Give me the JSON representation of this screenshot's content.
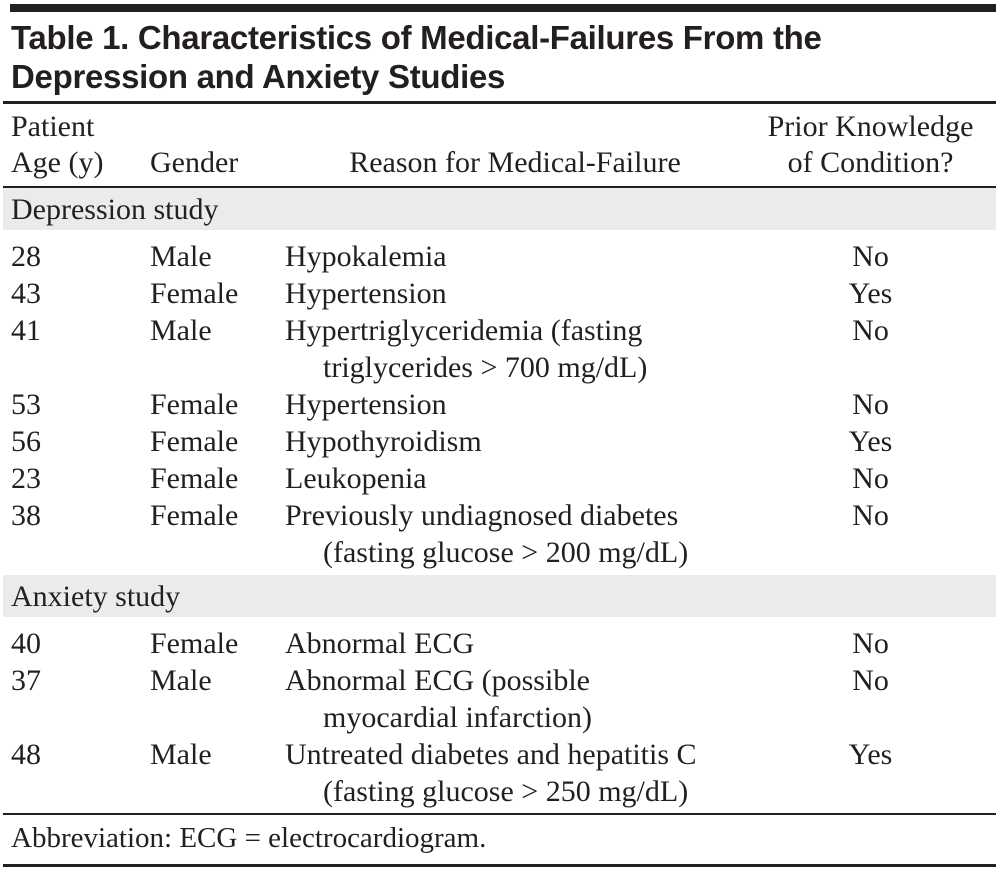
{
  "figure": {
    "title": "Table 1. Characteristics of Medical-Failures From the\nDepression and Anxiety Studies",
    "columns": [
      {
        "label": "Patient\nAge (y)"
      },
      {
        "label": "Gender"
      },
      {
        "label": "Reason for Medical-Failure"
      },
      {
        "label": "Prior Knowledge\nof Condition?"
      }
    ],
    "sections": [
      {
        "label": "Depression study",
        "rows": [
          {
            "age": "28",
            "gender": "Male",
            "reason": "Hypokalemia",
            "prior_knowledge": "No"
          },
          {
            "age": "43",
            "gender": "Female",
            "reason": "Hypertension",
            "prior_knowledge": "Yes"
          },
          {
            "age": "41",
            "gender": "Male",
            "reason": "Hypertriglyceridemia (fasting\ntriglycerides > 700 mg/dL)",
            "prior_knowledge": "No"
          },
          {
            "age": "53",
            "gender": "Female",
            "reason": "Hypertension",
            "prior_knowledge": "No"
          },
          {
            "age": "56",
            "gender": "Female",
            "reason": "Hypothyroidism",
            "prior_knowledge": "Yes"
          },
          {
            "age": "23",
            "gender": "Female",
            "reason": "Leukopenia",
            "prior_knowledge": "No"
          },
          {
            "age": "38",
            "gender": "Female",
            "reason": "Previously undiagnosed diabetes\n(fasting glucose > 200 mg/dL)",
            "prior_knowledge": "No"
          }
        ]
      },
      {
        "label": "Anxiety study",
        "rows": [
          {
            "age": "40",
            "gender": "Female",
            "reason": "Abnormal ECG",
            "prior_knowledge": "No"
          },
          {
            "age": "37",
            "gender": "Male",
            "reason": "Abnormal ECG (possible\nmyocardial infarction)",
            "prior_knowledge": "No"
          },
          {
            "age": "48",
            "gender": "Male",
            "reason": "Untreated diabetes and hepatitis C\n(fasting glucose > 250 mg/dL)",
            "prior_knowledge": "Yes"
          }
        ]
      }
    ],
    "footnote": "Abbreviation: ECG = electrocardiogram.",
    "colors": {
      "text": "#231f20",
      "rule": "#231f20",
      "section_band": "#ebebeb",
      "background": "#ffffff"
    }
  }
}
